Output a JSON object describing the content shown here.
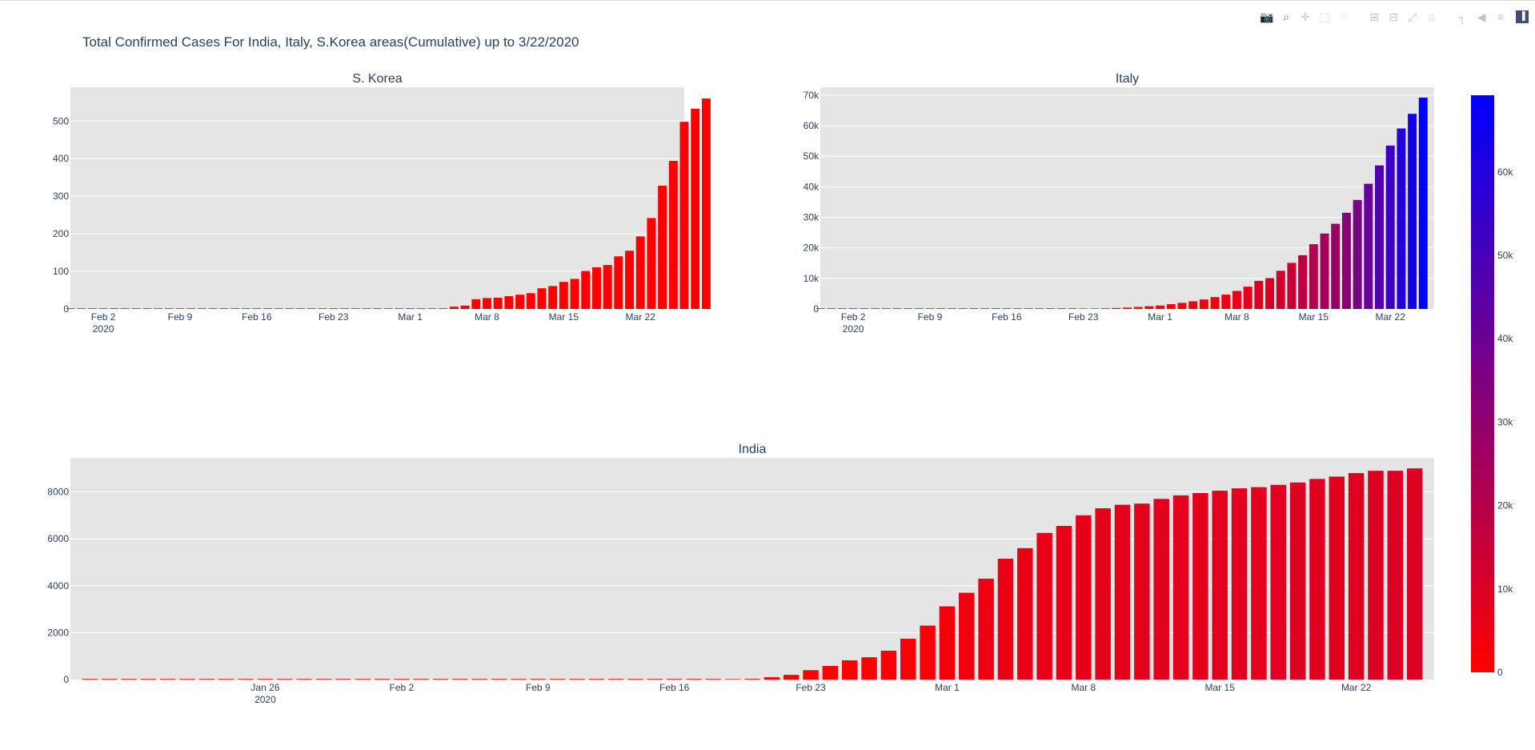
{
  "title": "Total Confirmed Cases For India, Italy, S.Korea areas(Cumulative) up to 3/22/2020",
  "modebar": [
    {
      "name": "camera-icon",
      "glyph": "📷"
    },
    {
      "name": "zoom-icon",
      "glyph": "⌕",
      "active": true
    },
    {
      "name": "pan-icon",
      "glyph": "✛"
    },
    {
      "name": "box-select-icon",
      "glyph": "⬚"
    },
    {
      "name": "lasso-select-icon",
      "glyph": "◌"
    },
    {
      "name": "gap"
    },
    {
      "name": "zoom-in-icon",
      "glyph": "⊞"
    },
    {
      "name": "zoom-out-icon",
      "glyph": "⊟"
    },
    {
      "name": "autoscale-icon",
      "glyph": "⤢"
    },
    {
      "name": "reset-axes-icon",
      "glyph": "⌂"
    },
    {
      "name": "gap"
    },
    {
      "name": "spike-lines-icon",
      "glyph": "┐"
    },
    {
      "name": "hover-closest-icon",
      "glyph": "◀"
    },
    {
      "name": "hover-compare-icon",
      "glyph": "≡"
    },
    {
      "name": "plotly-logo-icon",
      "glyph": "▐",
      "logo": true
    }
  ],
  "colors": {
    "plot_bg": "#e5e5e5",
    "grid": "#ffffff",
    "text": "#2a3f5f",
    "bar_low": "#ff0000",
    "bar_high": "#0000ff"
  },
  "chart_data": [
    {
      "type": "bar",
      "title": "S. Korea",
      "x_start": "2020-01-30",
      "xlim": [
        "2020-01-30",
        "2020-03-26"
      ],
      "x_ticks": [
        {
          "date": "2020-02-02",
          "label": "Feb 2",
          "sub": "2020"
        },
        {
          "date": "2020-02-09",
          "label": "Feb 9"
        },
        {
          "date": "2020-02-16",
          "label": "Feb 16"
        },
        {
          "date": "2020-02-23",
          "label": "Feb 23"
        },
        {
          "date": "2020-03-01",
          "label": "Mar 1"
        },
        {
          "date": "2020-03-08",
          "label": "Mar 8"
        },
        {
          "date": "2020-03-15",
          "label": "Mar 15"
        },
        {
          "date": "2020-03-22",
          "label": "Mar 22"
        }
      ],
      "ylim": [
        0,
        590
      ],
      "y_ticks": [
        {
          "value": 0,
          "label": "0"
        },
        {
          "value": 100,
          "label": "100"
        },
        {
          "value": 200,
          "label": "200"
        },
        {
          "value": 300,
          "label": "300"
        },
        {
          "value": 400,
          "label": "400"
        },
        {
          "value": 500,
          "label": "500"
        }
      ],
      "values": [
        0,
        0,
        0,
        0,
        0,
        0,
        0,
        0,
        0,
        0,
        0,
        0,
        0,
        0,
        0,
        0,
        0,
        0,
        0,
        0,
        0,
        0,
        0,
        0,
        0,
        0,
        0,
        0,
        0,
        0,
        0,
        0,
        0,
        0,
        0,
        6,
        9,
        26,
        29,
        30,
        34,
        38,
        42,
        55,
        61,
        72,
        80,
        101,
        111,
        117,
        140,
        155,
        193,
        242,
        328,
        394,
        498,
        533,
        560
      ]
    },
    {
      "type": "bar",
      "title": "Italy",
      "x_start": "2020-01-30",
      "xlim": [
        "2020-01-30",
        "2020-03-26"
      ],
      "x_ticks": [
        {
          "date": "2020-02-02",
          "label": "Feb 2",
          "sub": "2020"
        },
        {
          "date": "2020-02-09",
          "label": "Feb 9"
        },
        {
          "date": "2020-02-16",
          "label": "Feb 16"
        },
        {
          "date": "2020-02-23",
          "label": "Feb 23"
        },
        {
          "date": "2020-03-01",
          "label": "Mar 1"
        },
        {
          "date": "2020-03-08",
          "label": "Mar 8"
        },
        {
          "date": "2020-03-15",
          "label": "Mar 15"
        },
        {
          "date": "2020-03-22",
          "label": "Mar 22"
        }
      ],
      "ylim": [
        0,
        72600
      ],
      "y_ticks": [
        {
          "value": 0,
          "label": "0"
        },
        {
          "value": 10000,
          "label": "10k"
        },
        {
          "value": 20000,
          "label": "20k"
        },
        {
          "value": 30000,
          "label": "30k"
        },
        {
          "value": 40000,
          "label": "40k"
        },
        {
          "value": 50000,
          "label": "50k"
        },
        {
          "value": 60000,
          "label": "60k"
        },
        {
          "value": 70000,
          "label": "70k"
        }
      ],
      "values": [
        0,
        0,
        0,
        0,
        0,
        0,
        0,
        0,
        0,
        0,
        0,
        0,
        0,
        0,
        0,
        0,
        0,
        0,
        0,
        0,
        0,
        0,
        0,
        0,
        76,
        150,
        230,
        320,
        450,
        650,
        890,
        1130,
        1580,
        2000,
        2500,
        3100,
        3900,
        4700,
        5900,
        7300,
        9200,
        10100,
        12500,
        15100,
        17600,
        21200,
        24700,
        27900,
        31500,
        35700,
        41000,
        47000,
        53500,
        59100,
        63900,
        69200
      ]
    },
    {
      "type": "bar",
      "title": "India",
      "x_start": "2020-01-17",
      "xlim": [
        "2020-01-16",
        "2020-03-26"
      ],
      "x_ticks": [
        {
          "date": "2020-01-26",
          "label": "Jan 26",
          "sub": "2020"
        },
        {
          "date": "2020-02-02",
          "label": "Feb 2"
        },
        {
          "date": "2020-02-09",
          "label": "Feb 9"
        },
        {
          "date": "2020-02-16",
          "label": "Feb 16"
        },
        {
          "date": "2020-02-23",
          "label": "Feb 23"
        },
        {
          "date": "2020-03-01",
          "label": "Mar 1"
        },
        {
          "date": "2020-03-08",
          "label": "Mar 8"
        },
        {
          "date": "2020-03-15",
          "label": "Mar 15"
        },
        {
          "date": "2020-03-22",
          "label": "Mar 22"
        }
      ],
      "ylim": [
        0,
        9450
      ],
      "y_ticks": [
        {
          "value": 0,
          "label": "0"
        },
        {
          "value": 2000,
          "label": "2000"
        },
        {
          "value": 4000,
          "label": "4000"
        },
        {
          "value": 6000,
          "label": "6000"
        },
        {
          "value": 8000,
          "label": "8000"
        }
      ],
      "values": [
        0,
        0,
        0,
        0,
        0,
        0,
        0,
        0,
        0,
        0,
        0,
        0,
        0,
        0,
        0,
        0,
        0,
        0,
        0,
        0,
        0,
        0,
        0,
        0,
        0,
        0,
        0,
        0,
        0,
        0,
        0,
        0,
        0,
        10,
        30,
        100,
        200,
        400,
        580,
        820,
        950,
        1230,
        1740,
        2300,
        3120,
        3700,
        4300,
        5150,
        5600,
        6250,
        6550,
        7000,
        7300,
        7450,
        7500,
        7700,
        7850,
        7950,
        8050,
        8150,
        8200,
        8300,
        8400,
        8550,
        8650,
        8800,
        8900,
        8900,
        9000
      ]
    },
    {
      "type": "colorbar",
      "range": [
        0,
        69200
      ],
      "ticks": [
        {
          "value": 0,
          "label": "0"
        },
        {
          "value": 10000,
          "label": "10k"
        },
        {
          "value": 20000,
          "label": "20k"
        },
        {
          "value": 30000,
          "label": "30k"
        },
        {
          "value": 40000,
          "label": "40k"
        },
        {
          "value": 50000,
          "label": "50k"
        },
        {
          "value": 60000,
          "label": "60k"
        }
      ]
    }
  ]
}
